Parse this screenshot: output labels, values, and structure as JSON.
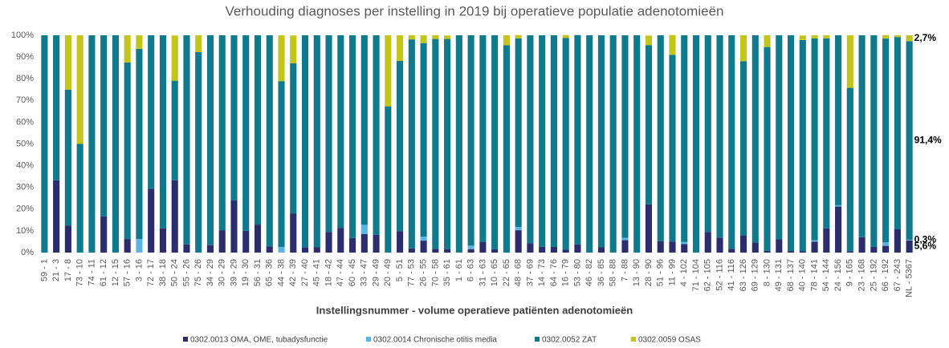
{
  "chart_data": {
    "type": "stacked_bar",
    "title": "Verhouding diagnoses per instelling in 2019 bij operatieve populatie adenotomieën",
    "x_label": "Instellingsnummer - volume operatieve patiënten adenotomieën",
    "categories": [
      "59 - 1",
      "21 - 3",
      "17 - 8",
      "73 - 10",
      "74 - 11",
      "61 - 12",
      "12 - 15",
      "57 - 16",
      "3 - 16",
      "72 - 17",
      "38 - 18",
      "50 - 24",
      "55 - 26",
      "75 - 26",
      "34 - 29",
      "30 - 29",
      "39 - 29",
      "19 - 30",
      "56 - 31",
      "65 - 36",
      "44 - 38",
      "42 - 39",
      "27 - 40",
      "45 - 41",
      "18 - 42",
      "47 - 44",
      "60 - 45",
      "33 - 47",
      "29 - 49",
      "20 - 49",
      "5 - 51",
      "77 - 53",
      "26 - 55",
      "70 - 58",
      "35 - 61",
      "1 - 61",
      "6 - 63",
      "31 - 63",
      "10 - 65",
      "22 - 65",
      "48 - 68",
      "37 - 69",
      "14 - 73",
      "64 - 76",
      "16 - 79",
      "53 - 80",
      "46 - 82",
      "36 - 85",
      "58 - 88",
      "7 - 88",
      "13 - 90",
      "28 - 90",
      "51 - 96",
      "11 - 99",
      "4 - 102",
      "71 - 104",
      "62 - 105",
      "52 - 116",
      "41 - 116",
      "63 - 126",
      "69 - 129",
      "8 - 130",
      "49 - 131",
      "68 - 137",
      "40 - 140",
      "78 - 141",
      "54 - 144",
      "24 - 156",
      "9 - 165",
      "23 - 168",
      "25 - 192",
      "66 - 192",
      "67 - 243",
      "NL - 5367"
    ],
    "series": [
      {
        "name": "0302.0013 OMA, OME, tubadysfunctie",
        "color": "#2b2d6e",
        "values": [
          0,
          33.3,
          12.5,
          0,
          0,
          16.7,
          0,
          6.25,
          0,
          29.4,
          11.1,
          33.3,
          3.8,
          0,
          3.4,
          10.3,
          24.1,
          10,
          12.9,
          2.8,
          0,
          17.9,
          2.5,
          2.4,
          9.5,
          11.4,
          6.7,
          8.5,
          8.2,
          0,
          9.8,
          1.9,
          5.5,
          1.7,
          1.6,
          0,
          1.6,
          4.8,
          1.5,
          0,
          10.3,
          4.3,
          2.7,
          2.6,
          1.3,
          3.8,
          0,
          2.4,
          0,
          5.7,
          0,
          22.2,
          5.2,
          5.1,
          3.9,
          0,
          9.5,
          6.9,
          1.7,
          7.9,
          4.7,
          0.8,
          6.1,
          0.7,
          0.7,
          5,
          11.1,
          21.2,
          0.6,
          7.1,
          2.6,
          3.1,
          10.7,
          5.6
        ],
        "value_labels": [
          null,
          null,
          null,
          null,
          null,
          null,
          null,
          null,
          null,
          null,
          null,
          null,
          null,
          null,
          null,
          null,
          null,
          null,
          null,
          null,
          null,
          null,
          null,
          null,
          null,
          null,
          null,
          null,
          null,
          null,
          null,
          null,
          null,
          null,
          null,
          null,
          null,
          null,
          null,
          null,
          null,
          null,
          null,
          null,
          null,
          null,
          null,
          null,
          null,
          null,
          null,
          null,
          null,
          null,
          null,
          null,
          null,
          null,
          null,
          null,
          null,
          null,
          null,
          null,
          null,
          null,
          null,
          null,
          null,
          null,
          null,
          null,
          null,
          "5,6%"
        ]
      },
      {
        "name": "0302.0014 Chronische otitis media",
        "color": "#5ab4e5",
        "values": [
          0,
          0,
          0,
          0,
          0,
          0,
          0,
          0,
          6.25,
          0,
          0,
          0,
          0,
          0,
          0,
          0,
          0,
          0,
          0,
          0,
          2.6,
          0,
          0,
          0,
          0,
          0,
          0,
          4.3,
          0,
          0,
          0,
          0,
          1.8,
          0,
          0,
          0,
          1.6,
          0,
          0,
          0,
          1.5,
          0,
          0,
          0,
          0,
          0,
          0,
          0,
          0,
          1.1,
          0,
          0,
          0,
          0,
          1,
          0,
          0,
          0,
          0,
          0,
          0,
          0,
          0,
          0,
          0,
          0.7,
          0,
          0.6,
          0,
          0,
          0,
          1.6,
          0,
          0.3
        ],
        "value_labels": [
          null,
          null,
          null,
          null,
          null,
          null,
          null,
          null,
          null,
          null,
          null,
          null,
          null,
          null,
          null,
          null,
          null,
          null,
          null,
          null,
          null,
          null,
          null,
          null,
          null,
          null,
          null,
          null,
          null,
          null,
          null,
          null,
          null,
          null,
          null,
          null,
          null,
          null,
          null,
          null,
          null,
          null,
          null,
          null,
          null,
          null,
          null,
          null,
          null,
          null,
          null,
          null,
          null,
          null,
          null,
          null,
          null,
          null,
          null,
          null,
          null,
          null,
          null,
          null,
          null,
          null,
          null,
          null,
          null,
          null,
          null,
          null,
          null,
          "0,3%"
        ]
      },
      {
        "name": "0302.0052 ZAT",
        "color": "#0e7a8b",
        "values": [
          100,
          66.7,
          62.5,
          50,
          100,
          83.3,
          100,
          81.25,
          87.5,
          70.6,
          88.9,
          45.8,
          96.2,
          92.3,
          96.6,
          89.7,
          75.9,
          90,
          87.1,
          97.2,
          76.3,
          69.2,
          97.5,
          97.6,
          90.5,
          88.6,
          93.3,
          87.2,
          91.8,
          67.3,
          78.4,
          96.2,
          89.1,
          96.6,
          96.7,
          100,
          96.8,
          95.2,
          98.5,
          95.4,
          86.8,
          95.7,
          97.3,
          97.4,
          97.5,
          96.3,
          100,
          97.6,
          100,
          93.2,
          100,
          73.3,
          94.8,
          85.9,
          95.1,
          100,
          90.5,
          93.1,
          98.3,
          80.2,
          95.3,
          93.8,
          93.9,
          99.3,
          97.1,
          92.9,
          87.5,
          78.2,
          75.2,
          92.9,
          97.4,
          93.8,
          88.5,
          91.4
        ],
        "value_labels": [
          null,
          null,
          null,
          null,
          null,
          null,
          null,
          null,
          null,
          null,
          null,
          null,
          null,
          null,
          null,
          null,
          null,
          null,
          null,
          null,
          null,
          null,
          null,
          null,
          null,
          null,
          null,
          null,
          null,
          null,
          null,
          null,
          null,
          null,
          null,
          null,
          null,
          null,
          null,
          null,
          null,
          null,
          null,
          null,
          null,
          null,
          null,
          null,
          null,
          null,
          null,
          null,
          null,
          null,
          null,
          null,
          null,
          null,
          null,
          null,
          null,
          null,
          null,
          null,
          null,
          null,
          null,
          null,
          null,
          null,
          null,
          null,
          null,
          "91,4%"
        ]
      },
      {
        "name": "0302.0059 OSAS",
        "color": "#c4c51b",
        "values": [
          0,
          0,
          25,
          50,
          0,
          0,
          0,
          12.5,
          6.25,
          0,
          0,
          20.8,
          0,
          7.7,
          0,
          0,
          0,
          0,
          0,
          0,
          21.1,
          12.8,
          0,
          0,
          0,
          0,
          0,
          0,
          0,
          32.7,
          11.8,
          1.9,
          3.6,
          1.7,
          1.6,
          0,
          0,
          0,
          0,
          4.6,
          1.5,
          0,
          0,
          0,
          1.3,
          0,
          0,
          0,
          0,
          0,
          0,
          4.4,
          0,
          9.1,
          0,
          0,
          0,
          0,
          0,
          11.9,
          0,
          5.4,
          0,
          0,
          2.1,
          1.4,
          1.4,
          0,
          24.2,
          0,
          0,
          1.6,
          0.8,
          2.7
        ],
        "value_labels": [
          null,
          null,
          null,
          null,
          null,
          null,
          null,
          null,
          null,
          null,
          null,
          null,
          null,
          null,
          null,
          null,
          null,
          null,
          null,
          null,
          null,
          null,
          null,
          null,
          null,
          null,
          null,
          null,
          null,
          null,
          null,
          null,
          null,
          null,
          null,
          null,
          null,
          null,
          null,
          null,
          null,
          null,
          null,
          null,
          null,
          null,
          null,
          null,
          null,
          null,
          null,
          null,
          null,
          null,
          null,
          null,
          null,
          null,
          null,
          null,
          null,
          null,
          null,
          null,
          null,
          null,
          null,
          null,
          null,
          null,
          null,
          null,
          null,
          "2,7%"
        ]
      }
    ],
    "ylim": [
      0,
      100
    ],
    "yticks": [
      {
        "value": 0,
        "label": "0%"
      },
      {
        "value": 10,
        "label": "10%"
      },
      {
        "value": 20,
        "label": "20%"
      },
      {
        "value": 30,
        "label": "30%"
      },
      {
        "value": 40,
        "label": "40%"
      },
      {
        "value": 50,
        "label": "50%"
      },
      {
        "value": 60,
        "label": "60%"
      },
      {
        "value": 70,
        "label": "70%"
      },
      {
        "value": 80,
        "label": "80%"
      },
      {
        "value": 90,
        "label": "90%"
      },
      {
        "value": 100,
        "label": "100%"
      }
    ],
    "grid": false
  }
}
